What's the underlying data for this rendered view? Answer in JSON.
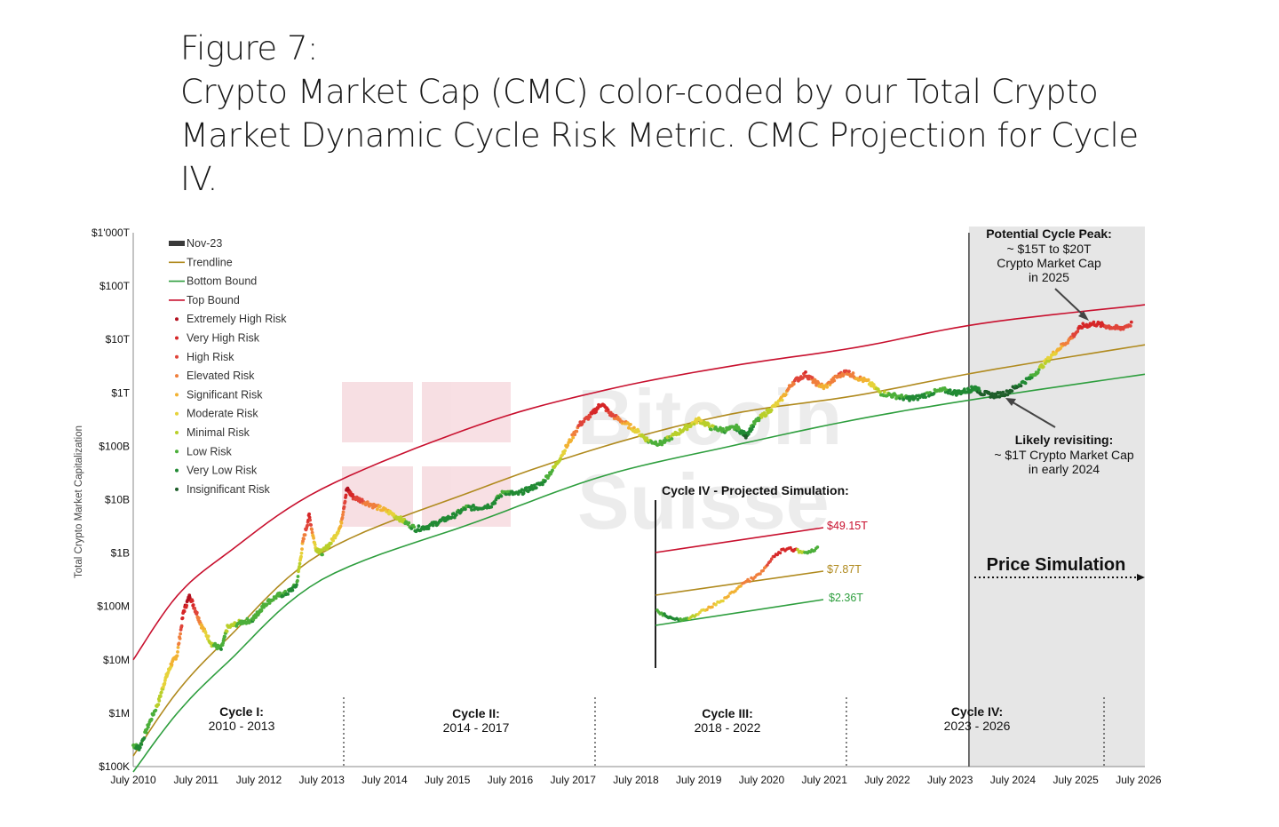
{
  "figure": {
    "label": "Figure 7:",
    "title_lines": [
      "Crypto Market Cap (CMC) color-coded by our Total Crypto",
      "Market Dynamic Cycle Risk Metric. CMC Projection for Cycle",
      "IV."
    ]
  },
  "chart_data": {
    "type": "scatter",
    "scale": "log",
    "ylabel": "Total Crypto Market Capitalization",
    "y_ticks": [
      "$1'000T",
      "$100T",
      "$10T",
      "$1T",
      "$100B",
      "$10B",
      "$1B",
      "$100M",
      "$10M",
      "$1M",
      "$100K"
    ],
    "x_ticks": [
      "July 2010",
      "July 2011",
      "July 2012",
      "July 2013",
      "July 2014",
      "July 2015",
      "July 2016",
      "July 2017",
      "July 2018",
      "July 2019",
      "July 2020",
      "July 2021",
      "July 2022",
      "July 2023",
      "July 2024",
      "July 2025",
      "July 2026"
    ],
    "x_range": [
      2010.5,
      2026.6
    ],
    "y_range_log10": [
      5,
      15
    ],
    "legend": [
      {
        "label": "Nov-23",
        "color": "#3a3a3a",
        "kind": "bar"
      },
      {
        "label": "Trendline",
        "color": "#b08a1e",
        "kind": "line"
      },
      {
        "label": "Bottom Bound",
        "color": "#2e9e3e",
        "kind": "line"
      },
      {
        "label": "Top Bound",
        "color": "#c8102e",
        "kind": "line"
      },
      {
        "label": "Extremely High Risk",
        "color": "#b3101f",
        "kind": "dot"
      },
      {
        "label": "Very High Risk",
        "color": "#d62728",
        "kind": "dot"
      },
      {
        "label": "High Risk",
        "color": "#e0453a",
        "kind": "dot"
      },
      {
        "label": "Elevated Risk",
        "color": "#f07f3c",
        "kind": "dot"
      },
      {
        "label": "Significant Risk",
        "color": "#f2b233",
        "kind": "dot"
      },
      {
        "label": "Moderate Risk",
        "color": "#e6d23a",
        "kind": "dot"
      },
      {
        "label": "Minimal Risk",
        "color": "#b9cf2a",
        "kind": "dot"
      },
      {
        "label": "Low Risk",
        "color": "#4caf3a",
        "kind": "dot"
      },
      {
        "label": "Very Low Risk",
        "color": "#218a34",
        "kind": "dot"
      },
      {
        "label": "Insignificant Risk",
        "color": "#1e5e2a",
        "kind": "dot"
      }
    ],
    "bounds": {
      "top": {
        "log10": [
          [
            2010.5,
            7.0
          ],
          [
            2011.2,
            8.2
          ],
          [
            2012.0,
            9.0
          ],
          [
            2013.5,
            10.2
          ],
          [
            2016.0,
            11.4
          ],
          [
            2018.0,
            12.05
          ],
          [
            2020.0,
            12.5
          ],
          [
            2022.0,
            12.85
          ],
          [
            2024.0,
            13.3
          ],
          [
            2026.6,
            13.65
          ]
        ]
      },
      "trend": {
        "log10": [
          [
            2010.5,
            5.2
          ],
          [
            2011.2,
            6.4
          ],
          [
            2012.0,
            7.4
          ],
          [
            2013.5,
            9.0
          ],
          [
            2016.0,
            10.2
          ],
          [
            2018.0,
            11.0
          ],
          [
            2020.0,
            11.6
          ],
          [
            2022.0,
            11.95
          ],
          [
            2024.0,
            12.4
          ],
          [
            2026.6,
            12.9
          ]
        ]
      },
      "bottom": {
        "log10": [
          [
            2010.5,
            4.9
          ],
          [
            2011.2,
            6.0
          ],
          [
            2012.0,
            6.95
          ],
          [
            2013.5,
            8.5
          ],
          [
            2016.0,
            9.6
          ],
          [
            2018.0,
            10.45
          ],
          [
            2020.0,
            11.0
          ],
          [
            2022.0,
            11.5
          ],
          [
            2024.0,
            11.9
          ],
          [
            2026.6,
            12.35
          ]
        ]
      }
    },
    "series": [
      {
        "name": "Total Crypto Market Cap",
        "points": [
          [
            2010.5,
            5.4
          ],
          [
            2010.6,
            5.35
          ],
          [
            2010.75,
            5.8
          ],
          [
            2010.9,
            6.2
          ],
          [
            2011.0,
            6.6
          ],
          [
            2011.1,
            6.9
          ],
          [
            2011.2,
            7.1
          ],
          [
            2011.3,
            7.9
          ],
          [
            2011.4,
            8.2
          ],
          [
            2011.5,
            7.9
          ],
          [
            2011.6,
            7.6
          ],
          [
            2011.75,
            7.3
          ],
          [
            2011.9,
            7.2
          ],
          [
            2012.0,
            7.6
          ],
          [
            2012.2,
            7.7
          ],
          [
            2012.4,
            7.75
          ],
          [
            2012.5,
            7.9
          ],
          [
            2012.6,
            8.05
          ],
          [
            2012.8,
            8.2
          ],
          [
            2012.95,
            8.25
          ],
          [
            2013.1,
            8.4
          ],
          [
            2013.2,
            9.2
          ],
          [
            2013.3,
            9.7
          ],
          [
            2013.4,
            9.1
          ],
          [
            2013.5,
            9.0
          ],
          [
            2013.65,
            9.2
          ],
          [
            2013.8,
            9.5
          ],
          [
            2013.9,
            10.2
          ],
          [
            2014.0,
            10.05
          ],
          [
            2014.2,
            9.95
          ],
          [
            2014.4,
            9.85
          ],
          [
            2014.6,
            9.75
          ],
          [
            2014.8,
            9.6
          ],
          [
            2015.0,
            9.45
          ],
          [
            2015.2,
            9.5
          ],
          [
            2015.4,
            9.6
          ],
          [
            2015.6,
            9.7
          ],
          [
            2015.8,
            9.85
          ],
          [
            2016.0,
            9.85
          ],
          [
            2016.2,
            9.9
          ],
          [
            2016.4,
            10.15
          ],
          [
            2016.6,
            10.1
          ],
          [
            2016.8,
            10.2
          ],
          [
            2017.0,
            10.3
          ],
          [
            2017.2,
            10.6
          ],
          [
            2017.4,
            11.0
          ],
          [
            2017.6,
            11.4
          ],
          [
            2017.8,
            11.6
          ],
          [
            2017.95,
            11.8
          ],
          [
            2018.1,
            11.6
          ],
          [
            2018.3,
            11.45
          ],
          [
            2018.5,
            11.3
          ],
          [
            2018.7,
            11.1
          ],
          [
            2018.9,
            11.05
          ],
          [
            2019.1,
            11.2
          ],
          [
            2019.3,
            11.35
          ],
          [
            2019.5,
            11.5
          ],
          [
            2019.7,
            11.35
          ],
          [
            2019.9,
            11.3
          ],
          [
            2020.1,
            11.35
          ],
          [
            2020.25,
            11.2
          ],
          [
            2020.4,
            11.45
          ],
          [
            2020.6,
            11.65
          ],
          [
            2020.8,
            11.85
          ],
          [
            2021.0,
            12.2
          ],
          [
            2021.2,
            12.35
          ],
          [
            2021.35,
            12.2
          ],
          [
            2021.5,
            12.1
          ],
          [
            2021.7,
            12.3
          ],
          [
            2021.85,
            12.4
          ],
          [
            2022.0,
            12.3
          ],
          [
            2022.2,
            12.2
          ],
          [
            2022.4,
            12.0
          ],
          [
            2022.6,
            11.95
          ],
          [
            2022.8,
            11.9
          ],
          [
            2022.95,
            11.9
          ],
          [
            2023.2,
            12.0
          ],
          [
            2023.4,
            12.05
          ],
          [
            2023.6,
            12.0
          ],
          [
            2023.8,
            12.05
          ],
          [
            2023.9,
            12.1
          ],
          [
            2024.0,
            12.0
          ],
          [
            2024.2,
            11.95
          ],
          [
            2024.4,
            12.0
          ],
          [
            2024.6,
            12.15
          ],
          [
            2024.8,
            12.3
          ],
          [
            2025.0,
            12.55
          ],
          [
            2025.2,
            12.8
          ],
          [
            2025.4,
            13.0
          ],
          [
            2025.6,
            13.25
          ],
          [
            2025.8,
            13.3
          ],
          [
            2026.0,
            13.25
          ],
          [
            2026.2,
            13.2
          ],
          [
            2026.4,
            13.3
          ]
        ]
      }
    ],
    "annotations": {
      "peak": [
        "Potential Cycle Peak:",
        "~ $15T to $20T",
        "Crypto Market Cap",
        "in 2025"
      ],
      "revisit": [
        "Likely revisiting:",
        "~ $1T Crypto Market Cap",
        "in early 2024"
      ],
      "price_simulation": "Price Simulation",
      "cycles": [
        {
          "name": "Cycle I:",
          "years": "2010 - 2013"
        },
        {
          "name": "Cycle II:",
          "years": "2014 - 2017"
        },
        {
          "name": "Cycle III:",
          "years": "2018 - 2022"
        },
        {
          "name": "Cycle IV:",
          "years": "2023 - 2026"
        }
      ],
      "cycle_dividers": [
        2013.85,
        2017.85,
        2021.85,
        2025.95
      ],
      "simulation_start": 2023.8
    },
    "inset": {
      "title": "Cycle IV - Projected Simulation:",
      "top_label": "$49.15T",
      "trend_label": "$7.87T",
      "bottom_label": "$2.36T"
    },
    "watermark": [
      "Bitcoin",
      "Suisse"
    ]
  }
}
